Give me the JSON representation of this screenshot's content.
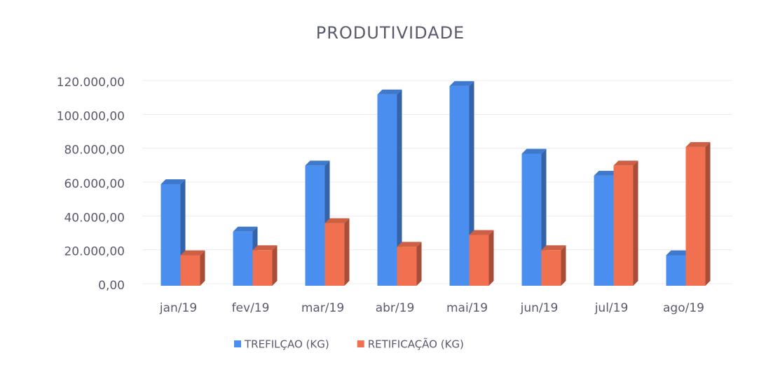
{
  "chart_data": {
    "type": "bar",
    "title": "PRODUTIVIDADE",
    "categories": [
      "jan/19",
      "fev/19",
      "mar/19",
      "abr/19",
      "mai/19",
      "jun/19",
      "jul/19",
      "ago/19"
    ],
    "series": [
      {
        "name": "TREFILÇAO (KG)",
        "color": "#4a8ef0",
        "values": [
          60000,
          32000,
          71000,
          113000,
          118000,
          78000,
          65000,
          18000
        ]
      },
      {
        "name": "RETIFICAÇÃO (KG)",
        "color": "#f07050",
        "values": [
          18000,
          21000,
          37000,
          23000,
          30000,
          21000,
          71000,
          82000
        ]
      }
    ],
    "ylim": [
      0,
      120000
    ],
    "yticks": [
      {
        "value": 0,
        "label": "0,00"
      },
      {
        "value": 20000,
        "label": "20.000,00"
      },
      {
        "value": 40000,
        "label": "40.000,00"
      },
      {
        "value": 60000,
        "label": "60.000,00"
      },
      {
        "value": 80000,
        "label": "80.000,00"
      },
      {
        "value": 100000,
        "label": "100.000,00"
      },
      {
        "value": 120000,
        "label": "120.000,00"
      }
    ],
    "grid": true,
    "legend": "bottom"
  }
}
